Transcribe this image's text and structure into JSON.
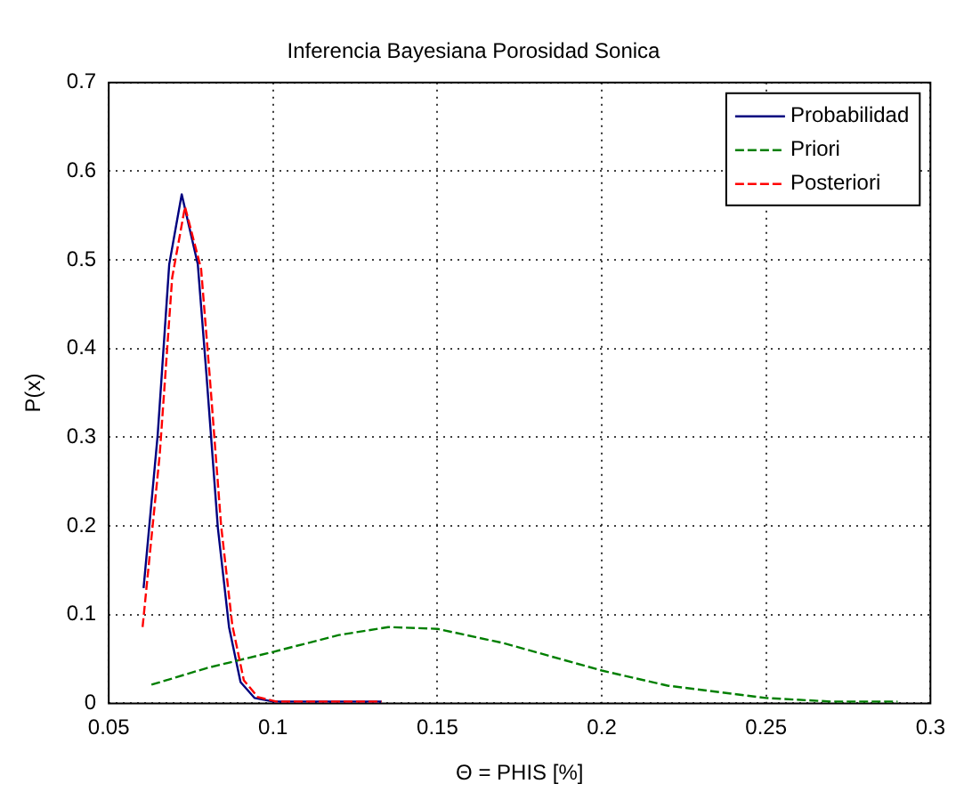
{
  "chart_data": {
    "type": "line",
    "title": "Inferencia Bayesiana Porosidad Sonica",
    "xlabel": "Θ = PHIS [%]",
    "ylabel": "P(x)",
    "xlim": [
      0.05,
      0.3
    ],
    "xticks": [
      0.05,
      0.1,
      0.15,
      0.2,
      0.25,
      0.3
    ],
    "ylim": [
      0,
      0.7
    ],
    "yticks": [
      0,
      0.1,
      0.2,
      0.3,
      0.4,
      0.5,
      0.6,
      0.7
    ],
    "grid": true,
    "legend": "top right",
    "marker": "none",
    "series": [
      {
        "name": "Probabilidad",
        "color": "#00007f",
        "line_style": "solid",
        "x": [
          0.0606,
          0.0649,
          0.0684,
          0.0722,
          0.0771,
          0.0797,
          0.0832,
          0.0866,
          0.0901,
          0.0944,
          0.1,
          0.133
        ],
        "values": [
          0.13,
          0.303,
          0.495,
          0.574,
          0.495,
          0.372,
          0.198,
          0.086,
          0.024,
          0.006,
          0.002,
          0.002
        ]
      },
      {
        "name": "Priori",
        "color": "#007f00",
        "line_style": "dashed",
        "x": [
          0.063,
          0.08,
          0.1,
          0.12,
          0.135,
          0.15,
          0.17,
          0.2,
          0.22,
          0.25,
          0.27,
          0.29
        ],
        "values": [
          0.021,
          0.04,
          0.058,
          0.077,
          0.086,
          0.084,
          0.068,
          0.037,
          0.02,
          0.006,
          0.002,
          0.002
        ]
      },
      {
        "name": "Posteriori",
        "color": "#ff0000",
        "line_style": "dashed",
        "x": [
          0.0603,
          0.0655,
          0.0693,
          0.0732,
          0.0781,
          0.0807,
          0.0842,
          0.0876,
          0.0911,
          0.0954,
          0.101,
          0.133
        ],
        "values": [
          0.086,
          0.28,
          0.48,
          0.56,
          0.49,
          0.37,
          0.2,
          0.088,
          0.026,
          0.007,
          0.002,
          0.002
        ]
      }
    ]
  }
}
